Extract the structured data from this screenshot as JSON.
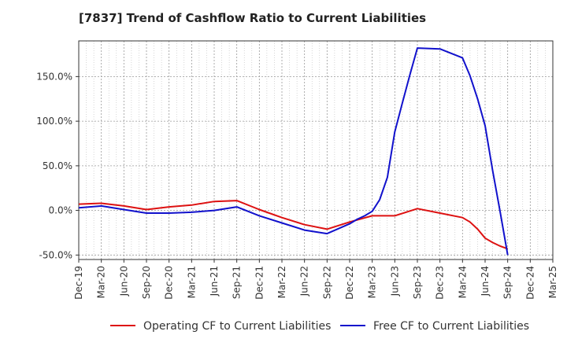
{
  "chart_data": {
    "type": "line",
    "title": "[7837]  Trend of Cashflow Ratio to Current Liabilities",
    "xlabel": "",
    "ylabel": "",
    "ylim": [
      -55,
      190
    ],
    "y_ticks": [
      150,
      100,
      50,
      0,
      -50
    ],
    "y_tick_labels": [
      "150.0%",
      "100.0%",
      "50.0%",
      "0.0%",
      "-50.0%"
    ],
    "x_ticks": [
      "Dec-19",
      "Mar-20",
      "Jun-20",
      "Sep-20",
      "Dec-20",
      "Mar-21",
      "Jun-21",
      "Sep-21",
      "Dec-21",
      "Mar-22",
      "Jun-22",
      "Sep-22",
      "Dec-22",
      "Mar-23",
      "Jun-23",
      "Sep-23",
      "Dec-23",
      "Mar-24",
      "Jun-24",
      "Sep-24",
      "Dec-24",
      "Mar-25"
    ],
    "grid": true,
    "legend_position": "bottom",
    "series": [
      {
        "name": "Operating CF to Current Liabilities",
        "color": "#dd1111",
        "x": [
          0,
          1,
          2,
          3,
          4,
          5,
          6,
          7,
          8,
          9,
          10,
          11,
          12,
          13,
          14,
          15,
          16,
          17,
          17.33,
          17.67,
          18,
          18.33,
          18.67,
          19
        ],
        "values": [
          7,
          8,
          5,
          1,
          4,
          6,
          10,
          11,
          1,
          -8,
          -16,
          -21,
          -13,
          -6,
          -6,
          2,
          -3,
          -8,
          -13,
          -21,
          -31,
          -36,
          -40,
          -43
        ]
      },
      {
        "name": "Free CF to Current Liabilities",
        "color": "#1111cc",
        "x": [
          0,
          1,
          2,
          3,
          4,
          5,
          6,
          7,
          8,
          9,
          10,
          11,
          12,
          12.33,
          12.67,
          13,
          13.33,
          13.67,
          14,
          14.33,
          14.67,
          15,
          16,
          17,
          17.33,
          17.67,
          18,
          18.33,
          18.67,
          19
        ],
        "values": [
          3,
          5,
          1,
          -3,
          -3,
          -2,
          0,
          4,
          -6,
          -14,
          -22,
          -26,
          -15,
          -10,
          -6,
          -1,
          12,
          37,
          88,
          120,
          152,
          182,
          181,
          171,
          151,
          125,
          95,
          45,
          -2,
          -50
        ]
      }
    ]
  }
}
